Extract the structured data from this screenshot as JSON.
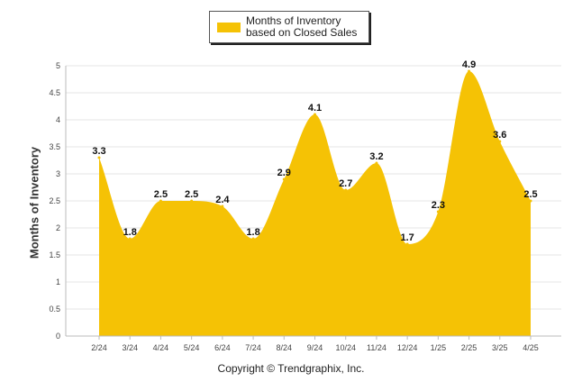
{
  "legend": {
    "label": "Months of Inventory based on Closed Sales"
  },
  "copyright": "Copyright © Trendgraphix, Inc.",
  "colors": {
    "series": "#F5C205",
    "grid": "#e6e6e6",
    "axis": "#bbbbbb"
  },
  "chart_data": {
    "type": "area",
    "title": "",
    "xlabel": "",
    "ylabel": "Months of Inventory",
    "categories": [
      "2/24",
      "3/24",
      "4/24",
      "5/24",
      "6/24",
      "7/24",
      "8/24",
      "9/24",
      "10/24",
      "11/24",
      "12/24",
      "1/25",
      "2/25",
      "3/25",
      "4/25"
    ],
    "series": [
      {
        "name": "Months of Inventory based on Closed Sales",
        "values": [
          3.3,
          1.8,
          2.5,
          2.5,
          2.4,
          1.8,
          2.9,
          4.1,
          2.7,
          3.2,
          1.7,
          2.3,
          4.9,
          3.6,
          2.5
        ]
      }
    ],
    "ylim": [
      0,
      5
    ],
    "yticks": [
      "0",
      "0.5",
      "1",
      "1.5",
      "2",
      "2.5",
      "3",
      "3.5",
      "4",
      "4.5",
      "5"
    ],
    "grid": true,
    "legend_position": "top-center"
  }
}
